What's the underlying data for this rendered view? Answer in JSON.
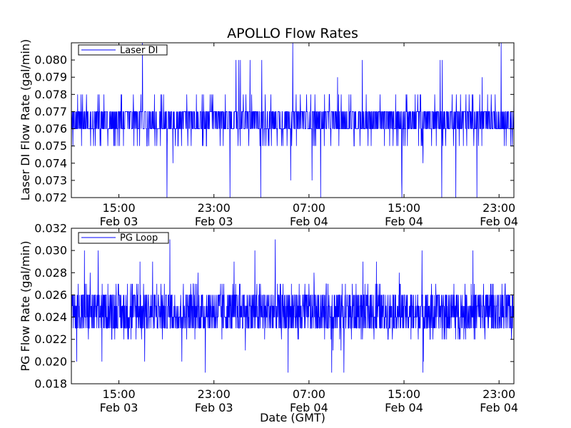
{
  "chart_data": [
    {
      "type": "line",
      "title": "APOLLO Flow Rates",
      "xlabel": "",
      "ylabel": "Laser DI Flow Rate (gal/min)",
      "ylim": [
        0.072,
        0.081
      ],
      "yticks": [
        "0.072",
        "0.073",
        "0.074",
        "0.075",
        "0.076",
        "0.077",
        "0.078",
        "0.079",
        "0.080"
      ],
      "x_range": [
        "2013-02-03 11:00",
        "2013-02-05 00:15"
      ],
      "xticks": [
        {
          "time": "15:00",
          "date": "Feb 03"
        },
        {
          "time": "23:00",
          "date": "Feb 03"
        },
        {
          "time": "07:00",
          "date": "Feb 04"
        },
        {
          "time": "15:00",
          "date": "Feb 04"
        },
        {
          "time": "23:00",
          "date": "Feb 04"
        }
      ],
      "legend": {
        "label": "Laser DI",
        "placement": "top-left"
      },
      "series": [
        {
          "name": "Laser DI",
          "color": "#0000ff",
          "center": 0.0765,
          "band": [
            0.076,
            0.077
          ],
          "typical_range": [
            0.075,
            0.078
          ],
          "min": 0.072,
          "max": 0.081
        }
      ]
    },
    {
      "type": "line",
      "title": "",
      "xlabel": "Date (GMT)",
      "ylabel": "PG Flow Rate (gal/min)",
      "ylim": [
        0.018,
        0.032
      ],
      "yticks": [
        "0.018",
        "0.020",
        "0.022",
        "0.024",
        "0.026",
        "0.028",
        "0.030",
        "0.032"
      ],
      "x_range": [
        "2013-02-03 11:00",
        "2013-02-05 00:15"
      ],
      "xticks": [
        {
          "time": "15:00",
          "date": "Feb 03"
        },
        {
          "time": "23:00",
          "date": "Feb 03"
        },
        {
          "time": "07:00",
          "date": "Feb 04"
        },
        {
          "time": "15:00",
          "date": "Feb 04"
        },
        {
          "time": "23:00",
          "date": "Feb 04"
        }
      ],
      "legend": {
        "label": "PG Loop",
        "placement": "top-left"
      },
      "series": [
        {
          "name": "PG Loop",
          "color": "#0000ff",
          "center": 0.0245,
          "band": [
            0.023,
            0.026
          ],
          "typical_range": [
            0.022,
            0.027
          ],
          "min": 0.019,
          "max": 0.031
        }
      ]
    }
  ]
}
